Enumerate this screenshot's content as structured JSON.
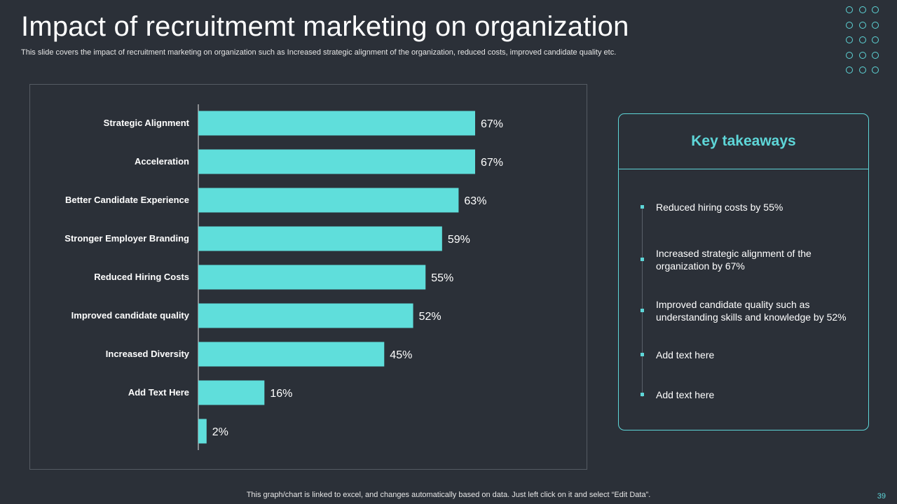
{
  "slide": {
    "title": "Impact of recruitmemt marketing on organization",
    "subtitle": "This slide covers the impact of recruitment marketing on organization such as Increased strategic alignment of the organization, reduced costs, improved candidate quality etc.",
    "footer": "This graph/chart is linked to excel,  and changes automatically based on data. Just left click on it and select “Edit Data”.",
    "page_number": "39"
  },
  "colors": {
    "background": "#2b3038",
    "accent": "#5ed6d8",
    "bar": "#5fdedb"
  },
  "chart_data": {
    "type": "bar",
    "orientation": "horizontal",
    "categories": [
      "Strategic Alignment",
      "Acceleration",
      "Better Candidate Experience",
      "Stronger Employer Branding",
      "Reduced Hiring Costs",
      "Improved candidate quality",
      "Increased Diversity",
      "Add Text Here",
      ""
    ],
    "values": [
      67,
      67,
      63,
      59,
      55,
      52,
      45,
      16,
      2
    ],
    "value_labels": [
      "67%",
      "67%",
      "63%",
      "59%",
      "55%",
      "52%",
      "45%",
      "16%",
      "2%"
    ],
    "unit": "%",
    "xlim": [
      0,
      100
    ],
    "grid": false,
    "legend": "none"
  },
  "takeaways": {
    "title": "Key takeaways",
    "items": [
      "Reduced hiring costs by 55%",
      "Increased strategic alignment of the organization by 67%",
      "Improved candidate quality such as understanding skills and knowledge by 52%",
      "Add text here",
      "Add text here"
    ]
  }
}
